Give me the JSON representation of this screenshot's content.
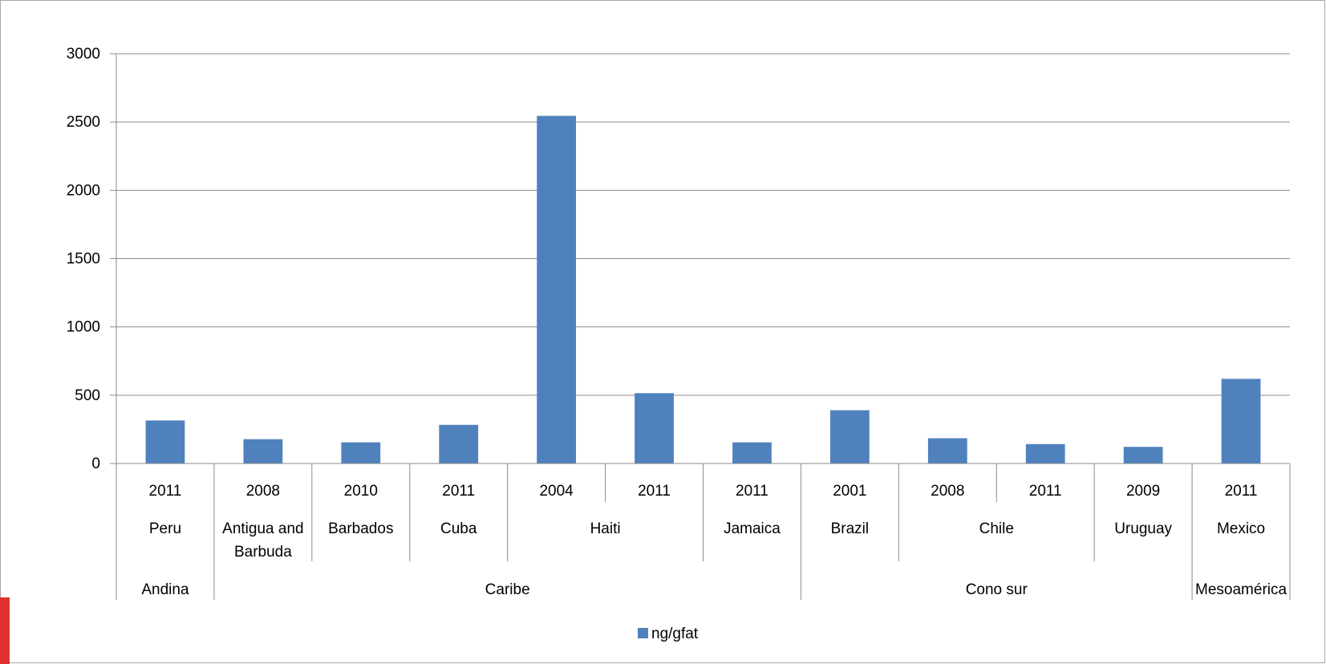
{
  "chart_data": {
    "type": "bar",
    "ylim": [
      0,
      3000
    ],
    "yticks": [
      0,
      500,
      1000,
      1500,
      2000,
      2500,
      3000
    ],
    "grid": true,
    "legend_position": "bottom",
    "bar_color": "#4f81bd",
    "categories": [
      {
        "year": "2011",
        "country": [
          "Peru"
        ],
        "region": "Andina"
      },
      {
        "year": "2008",
        "country": [
          "Antigua and",
          "Barbuda"
        ],
        "region": "Caribe"
      },
      {
        "year": "2010",
        "country": [
          "Barbados"
        ],
        "region": "Caribe"
      },
      {
        "year": "2011",
        "country": [
          "Cuba"
        ],
        "region": "Caribe"
      },
      {
        "year": "2004",
        "country": [
          "Haiti"
        ],
        "region": "Caribe"
      },
      {
        "year": "2011",
        "country": [
          "Haiti"
        ],
        "region": "Caribe"
      },
      {
        "year": "2011",
        "country": [
          "Jamaica"
        ],
        "region": "Caribe"
      },
      {
        "year": "2001",
        "country": [
          "Brazil"
        ],
        "region": "Cono sur"
      },
      {
        "year": "2008",
        "country": [
          "Chile"
        ],
        "region": "Cono sur"
      },
      {
        "year": "2011",
        "country": [
          "Chile"
        ],
        "region": "Cono sur"
      },
      {
        "year": "2009",
        "country": [
          "Uruguay"
        ],
        "region": "Cono sur"
      },
      {
        "year": "2011",
        "country": [
          "Mexico"
        ],
        "region": "Mesoamérica"
      }
    ],
    "series": [
      {
        "name": "ng/gfat",
        "values": [
          315,
          178,
          155,
          283,
          2545,
          515,
          155,
          390,
          185,
          142,
          122,
          620
        ]
      }
    ]
  }
}
